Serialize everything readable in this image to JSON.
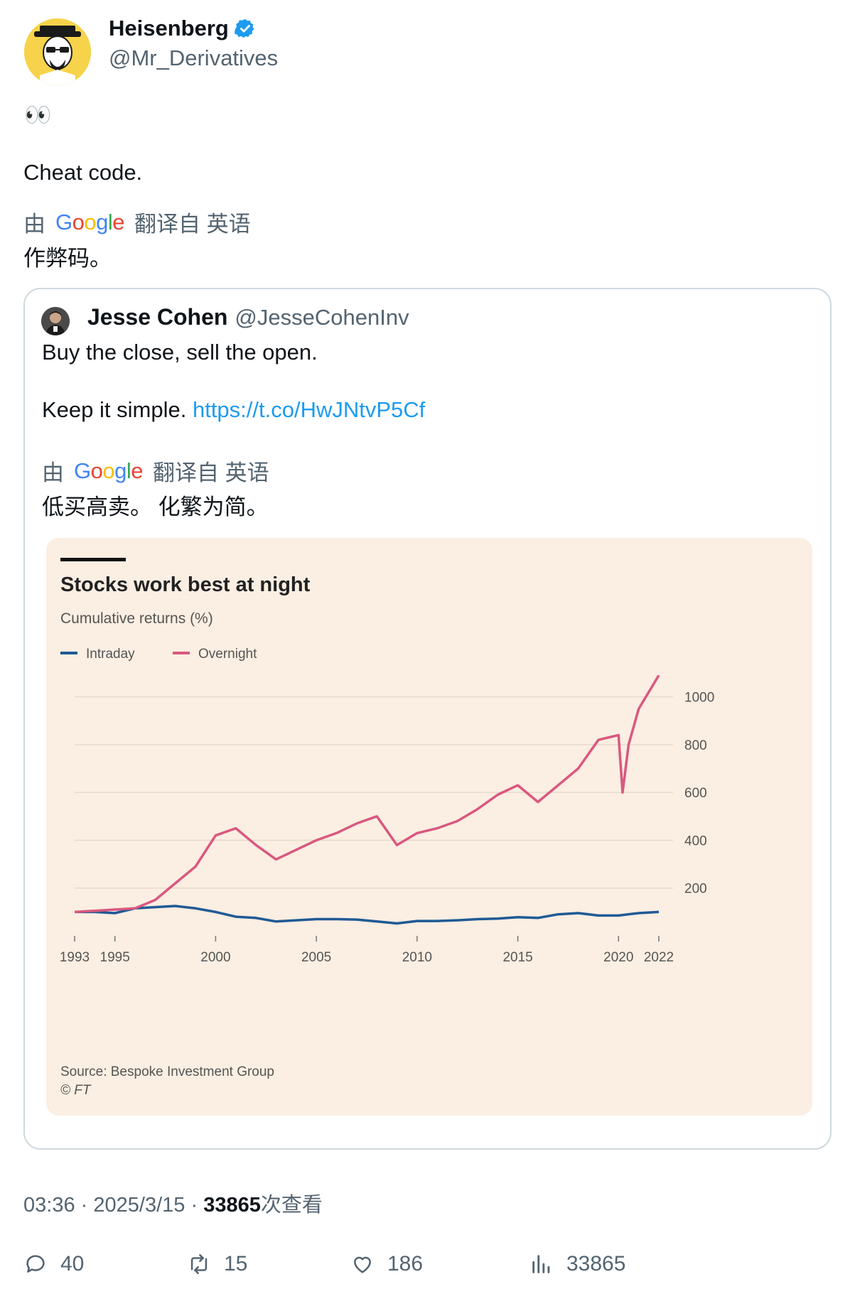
{
  "tweet": {
    "author_name": "Heisenberg",
    "author_handle": "@Mr_Derivatives",
    "emoji": "👀",
    "text": "Cheat code.",
    "translate_prefix": "由",
    "translate_brand": "Google",
    "translate_suffix": "翻译自 英语",
    "translation": "作弊码。"
  },
  "quote": {
    "author_name": "Jesse Cohen",
    "author_handle": "@JesseCohenInv",
    "line1": "Buy the close, sell the open.",
    "line2_text": "Keep it simple.",
    "line2_link": "https://t.co/HwJNtvP5Cf",
    "translate_prefix": "由",
    "translate_brand": "Google",
    "translate_suffix": "翻译自 英语",
    "translation": "低买高卖。 化繁为简。"
  },
  "chart_data": {
    "type": "line",
    "title": "Stocks work best at night",
    "subtitle": "Cumulative returns (%)",
    "source": "Source: Bespoke Investment Group",
    "credit": "© FT",
    "xlim": [
      1993,
      2022
    ],
    "ylim": [
      0,
      1100
    ],
    "x_ticks": [
      1993,
      1995,
      2000,
      2005,
      2010,
      2015,
      2020,
      2022
    ],
    "y_ticks": [
      200,
      400,
      600,
      800,
      1000
    ],
    "grid": true,
    "legend_position": "top-left",
    "series": [
      {
        "name": "Intraday",
        "color": "#1f5a96",
        "x": [
          1993,
          1994,
          1995,
          1996,
          1997,
          1998,
          1999,
          2000,
          2001,
          2002,
          2003,
          2004,
          2005,
          2006,
          2007,
          2008,
          2009,
          2010,
          2011,
          2012,
          2013,
          2014,
          2015,
          2016,
          2017,
          2018,
          2019,
          2020,
          2021,
          2022
        ],
        "values": [
          100,
          100,
          95,
          115,
          120,
          125,
          115,
          100,
          80,
          75,
          60,
          65,
          70,
          70,
          68,
          60,
          52,
          62,
          62,
          65,
          70,
          72,
          78,
          75,
          90,
          95,
          85,
          85,
          95,
          100
        ]
      },
      {
        "name": "Overnight",
        "color": "#d9587f",
        "x": [
          1993,
          1994,
          1995,
          1996,
          1997,
          1998,
          1999,
          2000,
          2001,
          2002,
          2003,
          2004,
          2005,
          2006,
          2007,
          2008,
          2009,
          2010,
          2011,
          2012,
          2013,
          2014,
          2015,
          2016,
          2017,
          2018,
          2019,
          2020,
          2020.2,
          2020.5,
          2021,
          2022
        ],
        "values": [
          100,
          105,
          110,
          115,
          150,
          220,
          290,
          420,
          450,
          380,
          320,
          360,
          400,
          430,
          470,
          500,
          380,
          430,
          450,
          480,
          530,
          590,
          630,
          560,
          630,
          700,
          820,
          840,
          600,
          800,
          950,
          1090
        ]
      }
    ]
  },
  "meta": {
    "time": "03:36",
    "separator": "·",
    "date": "2025/3/15",
    "views": "33865",
    "views_label": "次查看"
  },
  "actions": {
    "replies": "40",
    "retweets": "15",
    "likes": "186",
    "views": "33865"
  }
}
